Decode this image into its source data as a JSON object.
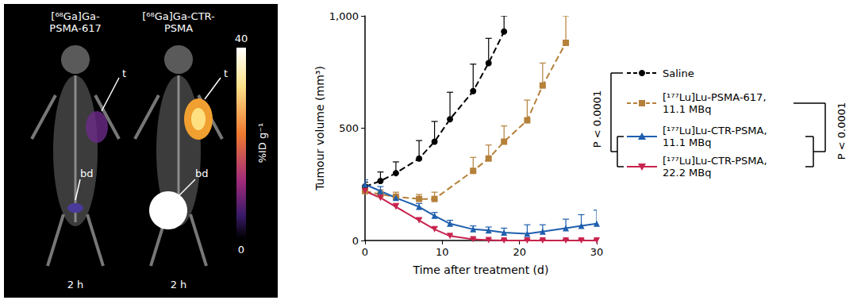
{
  "image_panel": {
    "labels": [
      "[⁶⁸Ga]Ga-\nPSMA-617",
      "[⁶⁸Ga]Ga-CTR-\nPSMA"
    ],
    "time_labels": [
      "2 h",
      "2 h"
    ],
    "tumour_label": "t",
    "bladder_label": "bd",
    "colorbar": {
      "label": "%ID g⁻¹",
      "range": [
        0,
        40
      ],
      "ticks": [
        0,
        40
      ]
    }
  },
  "chart_data": {
    "type": "line",
    "x_label": "Time after treatment (d)",
    "y_label": "Tumour volume (mm³)",
    "xlim": [
      0,
      30
    ],
    "xticks": [
      0,
      10,
      20,
      30
    ],
    "ylim": [
      0,
      1000
    ],
    "yticks": [
      0,
      500,
      {
        "value": 1000,
        "label": "1,000"
      }
    ],
    "grid": false,
    "legend": "right",
    "annotations": [
      "P < 0.0001",
      "P < 0.0001"
    ],
    "series": [
      {
        "name": "Saline",
        "color": "#000000",
        "marker": "circle",
        "line_style": "dashed",
        "x": [
          0,
          2,
          4,
          7,
          9,
          11,
          14,
          16,
          18
        ],
        "values": [
          240,
          265,
          300,
          365,
          440,
          540,
          665,
          790,
          930
        ],
        "errors": [
          20,
          40,
          50,
          80,
          90,
          120,
          120,
          110,
          70
        ]
      },
      {
        "name": "[¹⁷⁷Lu]Lu-PSMA-617, 11.1 MBq",
        "color": "#b5803a",
        "marker": "square",
        "line_style": "dashed",
        "x": [
          0,
          2,
          4,
          7,
          9,
          14,
          16,
          18,
          21,
          23,
          26
        ],
        "values": [
          220,
          205,
          195,
          185,
          185,
          310,
          365,
          440,
          535,
          690,
          880
        ],
        "errors": [
          30,
          20,
          20,
          20,
          30,
          60,
          60,
          70,
          90,
          100,
          120
        ]
      },
      {
        "name": "[¹⁷⁷Lu]Lu-CTR-PSMA, 11.1 MBq",
        "color": "#1f5fae",
        "marker": "triangle",
        "line_style": "solid",
        "x": [
          0,
          2,
          4,
          7,
          9,
          11,
          14,
          16,
          18,
          21,
          23,
          26,
          28,
          30
        ],
        "values": [
          250,
          220,
          190,
          150,
          110,
          75,
          50,
          45,
          35,
          30,
          40,
          55,
          65,
          75
        ],
        "errors": [
          20,
          20,
          15,
          15,
          15,
          15,
          15,
          15,
          20,
          40,
          30,
          40,
          50,
          60
        ]
      },
      {
        "name": "[¹⁷⁷Lu]Lu-CTR-PSMA, 22.2 MBq",
        "color": "#c8234e",
        "marker": "triangle-down",
        "line_style": "solid",
        "x": [
          0,
          2,
          4,
          7,
          9,
          11,
          14,
          16,
          18,
          21,
          23,
          26,
          28,
          30
        ],
        "values": [
          220,
          190,
          150,
          90,
          50,
          20,
          5,
          2,
          0,
          0,
          0,
          0,
          0,
          0
        ],
        "errors": [
          20,
          15,
          15,
          10,
          10,
          5,
          5,
          5,
          5,
          5,
          5,
          5,
          5,
          5
        ]
      }
    ]
  }
}
